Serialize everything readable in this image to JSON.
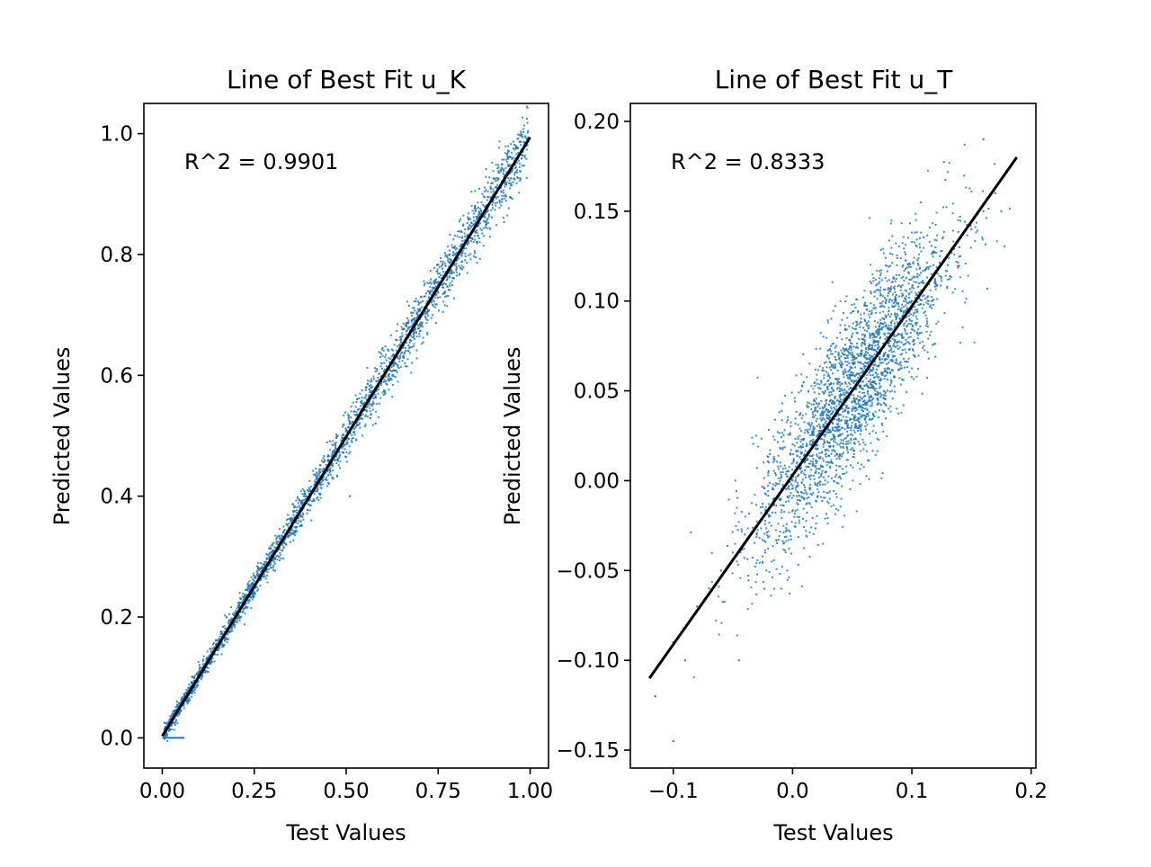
{
  "chart_data": [
    {
      "type": "scatter",
      "title": "Line of Best Fit u_K",
      "xlabel": "Test Values",
      "ylabel": "Predicted Values",
      "annotation": "R^2 = 0.9901",
      "xlim": [
        -0.05,
        1.05
      ],
      "ylim": [
        -0.05,
        1.05
      ],
      "xticks": [
        0.0,
        0.25,
        0.5,
        0.75,
        1.0
      ],
      "xtick_labels": [
        "0.00",
        "0.25",
        "0.50",
        "0.75",
        "1.00"
      ],
      "yticks": [
        0.0,
        0.2,
        0.4,
        0.6,
        0.8,
        1.0
      ],
      "ytick_labels": [
        "0.0",
        "0.2",
        "0.4",
        "0.6",
        "0.8",
        "1.0"
      ],
      "grid": false,
      "scatter_color": "#1f77b4",
      "fit_color": "#000000",
      "fit_line": {
        "x": [
          0.0,
          1.0
        ],
        "y": [
          0.003,
          0.994
        ]
      },
      "extra_segment": {
        "x": [
          0.0,
          0.06
        ],
        "y": [
          0.0,
          0.0
        ]
      },
      "series": [
        {
          "x": [
            0.02,
            0.04,
            0.06,
            0.08,
            0.1,
            0.12,
            0.15,
            0.18,
            0.2,
            0.22,
            0.25,
            0.28,
            0.3,
            0.33,
            0.35,
            0.38,
            0.4,
            0.42,
            0.45,
            0.48,
            0.5,
            0.52,
            0.55,
            0.58,
            0.6,
            0.62,
            0.65,
            0.68,
            0.7,
            0.72,
            0.75,
            0.78,
            0.8,
            0.82,
            0.85,
            0.88,
            0.9,
            0.92,
            0.95,
            0.98,
            0.51,
            0.58,
            0.85,
            0.93
          ],
          "y": [
            0.03,
            0.06,
            0.07,
            0.09,
            0.11,
            0.13,
            0.15,
            0.19,
            0.21,
            0.22,
            0.26,
            0.28,
            0.31,
            0.33,
            0.36,
            0.38,
            0.4,
            0.43,
            0.45,
            0.48,
            0.51,
            0.52,
            0.55,
            0.58,
            0.6,
            0.62,
            0.65,
            0.68,
            0.7,
            0.71,
            0.75,
            0.78,
            0.79,
            0.81,
            0.85,
            0.87,
            0.89,
            0.91,
            0.94,
            0.97,
            0.4,
            0.52,
            0.88,
            0.92
          ]
        }
      ]
    },
    {
      "type": "scatter",
      "title": "Line of Best Fit u_T",
      "xlabel": "Test Values",
      "ylabel": "Predicted Values",
      "annotation": "R^2 = 0.8333",
      "xlim": [
        -0.136,
        0.204
      ],
      "ylim": [
        -0.16,
        0.21
      ],
      "xticks": [
        -0.1,
        0.0,
        0.1,
        0.2
      ],
      "xtick_labels": [
        "−0.1",
        "0.0",
        "0.1",
        "0.2"
      ],
      "yticks": [
        -0.15,
        -0.1,
        -0.05,
        0.0,
        0.05,
        0.1,
        0.15,
        0.2
      ],
      "ytick_labels": [
        "−0.15",
        "−0.10",
        "−0.05",
        "0.00",
        "0.05",
        "0.10",
        "0.15",
        "0.20"
      ],
      "grid": false,
      "scatter_color": "#1f77b4",
      "fit_color": "#000000",
      "fit_line": {
        "x": [
          -0.12,
          0.188
        ],
        "y": [
          -0.11,
          0.18
        ]
      },
      "series": [
        {
          "x": [
            -0.115,
            -0.1,
            -0.09,
            -0.08,
            -0.07,
            -0.06,
            -0.05,
            -0.04,
            -0.03,
            -0.02,
            -0.01,
            0.0,
            0.01,
            0.02,
            0.03,
            0.04,
            0.05,
            0.06,
            0.07,
            0.08,
            0.09,
            0.1,
            0.11,
            0.12,
            0.13,
            0.14,
            0.15,
            0.16,
            0.17,
            0.175,
            -0.1,
            -0.045,
            0.16
          ],
          "y": [
            -0.12,
            -0.09,
            -0.1,
            -0.07,
            -0.06,
            -0.05,
            -0.04,
            -0.03,
            -0.03,
            -0.02,
            -0.01,
            0.0,
            0.01,
            0.02,
            0.03,
            0.04,
            0.05,
            0.06,
            0.06,
            0.07,
            0.09,
            0.1,
            0.11,
            0.11,
            0.12,
            0.13,
            0.14,
            0.15,
            0.16,
            0.15,
            -0.145,
            -0.1,
            0.19
          ]
        }
      ]
    }
  ]
}
